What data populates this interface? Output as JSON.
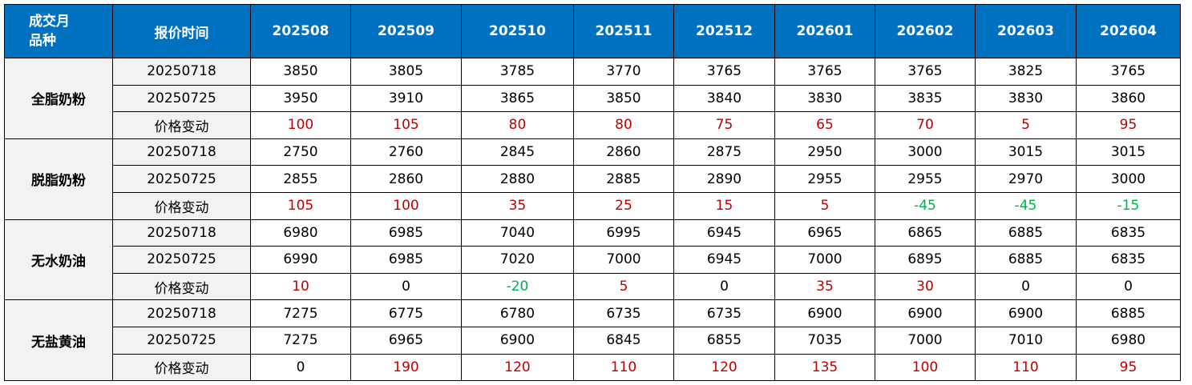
{
  "header": {
    "corner_top": "成交月",
    "corner_bottom": "品种",
    "quote_time": "报价时间",
    "months": [
      "202508",
      "202509",
      "202510",
      "202511",
      "202512",
      "202601",
      "202602",
      "202603",
      "202604"
    ]
  },
  "groups": [
    {
      "name": "全脂奶粉",
      "rows": [
        {
          "label": "20250718",
          "values": [
            "3850",
            "3805",
            "3785",
            "3770",
            "3765",
            "3765",
            "3765",
            "3825",
            "3765"
          ]
        },
        {
          "label": "20250725",
          "values": [
            "3950",
            "3910",
            "3865",
            "3850",
            "3840",
            "3830",
            "3835",
            "3830",
            "3860"
          ]
        },
        {
          "label": "价格变动",
          "values": [
            "100",
            "105",
            "80",
            "80",
            "75",
            "65",
            "70",
            "5",
            "95"
          ]
        }
      ]
    },
    {
      "name": "脱脂奶粉",
      "rows": [
        {
          "label": "20250718",
          "values": [
            "2750",
            "2760",
            "2845",
            "2860",
            "2875",
            "2950",
            "3000",
            "3015",
            "3015"
          ]
        },
        {
          "label": "20250725",
          "values": [
            "2855",
            "2860",
            "2880",
            "2885",
            "2890",
            "2955",
            "2955",
            "2970",
            "3000"
          ]
        },
        {
          "label": "价格变动",
          "values": [
            "105",
            "100",
            "35",
            "25",
            "15",
            "5",
            "-45",
            "-45",
            "-15"
          ]
        }
      ]
    },
    {
      "name": "无水奶油",
      "rows": [
        {
          "label": "20250718",
          "values": [
            "6980",
            "6985",
            "7040",
            "6995",
            "6945",
            "6965",
            "6865",
            "6885",
            "6835"
          ]
        },
        {
          "label": "20250725",
          "values": [
            "6990",
            "6985",
            "7020",
            "7000",
            "6945",
            "7000",
            "6895",
            "6885",
            "6835"
          ]
        },
        {
          "label": "价格变动",
          "values": [
            "10",
            "0",
            "-20",
            "5",
            "0",
            "35",
            "30",
            "0",
            "0"
          ]
        }
      ]
    },
    {
      "name": "无盐黄油",
      "rows": [
        {
          "label": "20250718",
          "values": [
            "7275",
            "6775",
            "6780",
            "6735",
            "6735",
            "6900",
            "6900",
            "6900",
            "6885"
          ]
        },
        {
          "label": "20250725",
          "values": [
            "7275",
            "6965",
            "6900",
            "6845",
            "6855",
            "7035",
            "7000",
            "7010",
            "6980"
          ]
        },
        {
          "label": "价格变动",
          "values": [
            "0",
            "190",
            "120",
            "110",
            "120",
            "135",
            "100",
            "110",
            "95"
          ]
        }
      ]
    }
  ],
  "colors": {
    "header_bg": "#0070c0",
    "positive_change": "#c00000",
    "negative_change": "#00b050",
    "label_bg": "#f2f2f2"
  }
}
